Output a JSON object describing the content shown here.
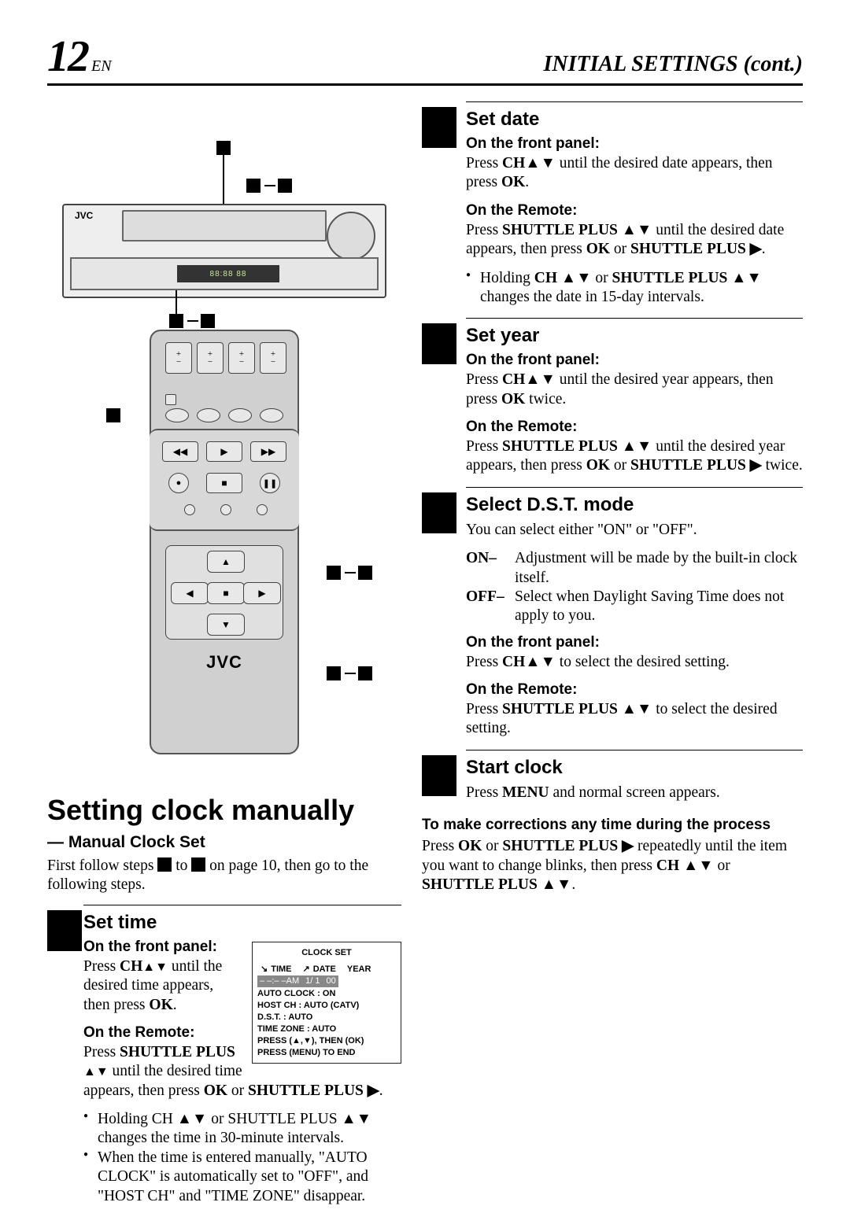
{
  "header": {
    "page_number": "12",
    "lang": "EN",
    "title": "INITIAL SETTINGS (cont.)"
  },
  "vcr": {
    "brand": "JVC",
    "display_sample": "88:88 88"
  },
  "remote": {
    "brand": "JVC"
  },
  "left": {
    "main_heading": "Setting clock manually",
    "sub_heading": "— Manual Clock Set",
    "intro_pre": "First follow steps ",
    "intro_mid": " to ",
    "intro_post": " on page 10, then go to the following steps.",
    "step": {
      "title": "Set time",
      "front_label": "On the front panel:",
      "front_text_pre": "Press ",
      "front_bold": "CH",
      "front_arrows": "▲▼",
      "front_text_mid": " until the desired time appears, then press ",
      "front_ok": "OK",
      "front_text_post": ".",
      "remote_label": "On the Remote:",
      "remote_text_pre": "Press ",
      "remote_bold": "SHUTTLE PLUS",
      "remote_arrows": " ▲▼",
      "remote_text_mid": " until the desired time appears, then press ",
      "remote_ok": "OK",
      "remote_or": " or ",
      "remote_sp2": "SHUTTLE PLUS ▶",
      "remote_text_post": ".",
      "bullets": [
        "Holding CH ▲▼ or SHUTTLE PLUS ▲▼ changes the time in 30-minute intervals.",
        "When the time is entered manually, \"AUTO CLOCK\" is automatically set to \"OFF\", and \"HOST CH\" and \"TIME ZONE\" disappear."
      ]
    },
    "osd": {
      "title": "CLOCK SET",
      "head": [
        "TIME",
        "DATE",
        "YEAR"
      ],
      "values": [
        "– –:– –AM",
        "1/ 1",
        "00"
      ],
      "lines": [
        "AUTO CLOCK : ON",
        "HOST CH      : AUTO   (CATV)",
        "D.S.T.           : AUTO",
        "TIME ZONE   : AUTO",
        "PRESS (▲,▼), THEN (OK)",
        "PRESS (MENU) TO END"
      ]
    }
  },
  "right": {
    "steps": [
      {
        "title": "Set date",
        "front_label": "On the front panel:",
        "front_html": "Press <b>CH▲▼</b> until the desired date appears, then press <b>OK</b>.",
        "remote_label": "On the Remote:",
        "remote_html": "Press <b>SHUTTLE PLUS ▲▼</b> until the desired date appears, then press <b>OK</b> or <b>SHUTTLE PLUS ▶</b>.",
        "bullets": [
          "Holding <b>CH ▲▼</b> or <b>SHUTTLE PLUS ▲▼</b> changes the date in 15-day intervals."
        ]
      },
      {
        "title": "Set year",
        "front_label": "On the front panel:",
        "front_html": "Press <b>CH▲▼</b> until the desired year appears, then press <b>OK</b> twice.",
        "remote_label": "On the Remote:",
        "remote_html": "Press <b>SHUTTLE PLUS ▲▼</b> until the desired year appears, then press <b>OK</b> or <b>SHUTTLE PLUS ▶</b> twice."
      },
      {
        "title": "Select D.S.T. mode",
        "intro": "You can select either \"ON\" or \"OFF\".",
        "defs": [
          {
            "lbl": "ON–",
            "txt": "Adjustment will be made by the built-in clock itself."
          },
          {
            "lbl": "OFF–",
            "txt": "Select when Daylight Saving Time does not apply to you."
          }
        ],
        "front_label": "On the front panel:",
        "front_html": "Press <b>CH▲▼</b> to select the desired setting.",
        "remote_label": "On the Remote:",
        "remote_html": "Press <b>SHUTTLE PLUS ▲▼</b> to select the desired setting."
      },
      {
        "title": "Start clock",
        "front_html": "Press <b>MENU</b> and normal screen appears."
      }
    ],
    "corrections_heading": "To make corrections any time during the process",
    "corrections_html": "Press <b>OK</b> or <b>SHUTTLE PLUS ▶</b> repeatedly until the item you want to change blinks, then press <b>CH ▲▼</b> or <b>SHUTTLE PLUS ▲▼</b>."
  }
}
